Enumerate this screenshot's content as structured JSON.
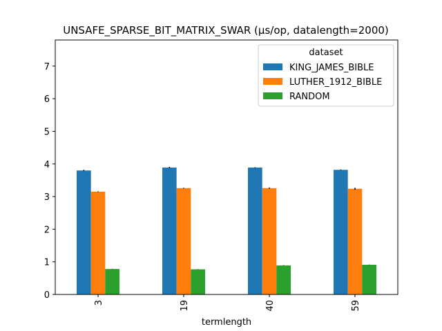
{
  "chart_data": {
    "type": "bar",
    "title": "UNSAFE_SPARSE_BIT_MATRIX_SWAR (µs/op, datalength=2000)",
    "xlabel": "termlength",
    "ylabel": "",
    "categories": [
      "3",
      "19",
      "40",
      "59"
    ],
    "ylim": [
      0,
      7.8
    ],
    "yticks": [
      "0",
      "1",
      "2",
      "3",
      "4",
      "5",
      "6",
      "7"
    ],
    "grid": false,
    "legend": {
      "title": "dataset",
      "position": "top-right"
    },
    "series": [
      {
        "name": "KING_JAMES_BIBLE",
        "color": "#1f77b4",
        "values": [
          3.8,
          3.89,
          3.89,
          3.82
        ],
        "errors": [
          0.02,
          0.02,
          0.01,
          0.01
        ]
      },
      {
        "name": "LUTHER_1912_BIBLE",
        "color": "#ff7f0e",
        "values": [
          3.15,
          3.26,
          3.26,
          3.24
        ],
        "errors": [
          0.01,
          0.01,
          0.02,
          0.03
        ]
      },
      {
        "name": "RANDOM",
        "color": "#2ca02c",
        "values": [
          0.78,
          0.77,
          0.89,
          0.91
        ],
        "errors": [
          0.005,
          0.005,
          0.005,
          0.005
        ]
      }
    ]
  }
}
